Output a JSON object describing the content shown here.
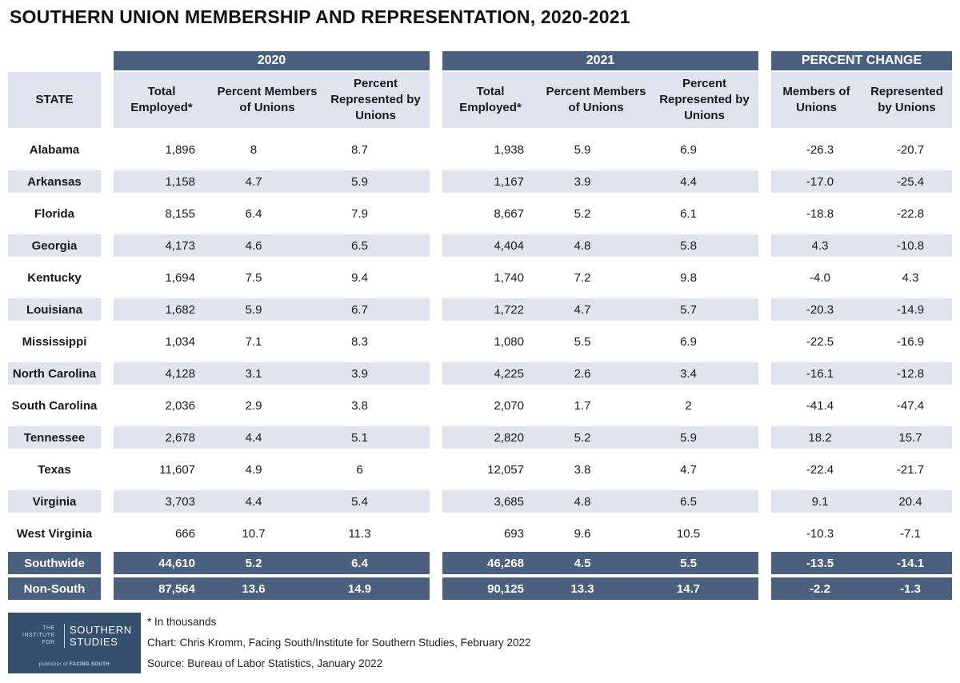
{
  "title": "SOUTHERN UNION MEMBERSHIP AND REPRESENTATION, 2020-2021",
  "header": {
    "state": "STATE",
    "group_2020": "2020",
    "group_2021": "2021",
    "group_change": "PERCENT CHANGE",
    "total_employed": "Total Employed*",
    "pct_members": "Percent Members of Unions",
    "pct_represented": "Percent Represented by Unions",
    "members": "Members of Unions",
    "represented": "Represented by Unions"
  },
  "rows": [
    {
      "state": "Alabama",
      "e20": "1,896",
      "m20": "8",
      "r20": "8.7",
      "e21": "1,938",
      "m21": "5.9",
      "r21": "6.9",
      "cm": "-26.3",
      "cr": "-20.7"
    },
    {
      "state": "Arkansas",
      "e20": "1,158",
      "m20": "4.7",
      "r20": "5.9",
      "e21": "1,167",
      "m21": "3.9",
      "r21": "4.4",
      "cm": "-17.0",
      "cr": "-25.4"
    },
    {
      "state": "Florida",
      "e20": "8,155",
      "m20": "6.4",
      "r20": "7.9",
      "e21": "8,667",
      "m21": "5.2",
      "r21": "6.1",
      "cm": "-18.8",
      "cr": "-22.8"
    },
    {
      "state": "Georgia",
      "e20": "4,173",
      "m20": "4.6",
      "r20": "6.5",
      "e21": "4,404",
      "m21": "4.8",
      "r21": "5.8",
      "cm": "4.3",
      "cr": "-10.8"
    },
    {
      "state": "Kentucky",
      "e20": "1,694",
      "m20": "7.5",
      "r20": "9.4",
      "e21": "1,740",
      "m21": "7.2",
      "r21": "9.8",
      "cm": "-4.0",
      "cr": "4.3"
    },
    {
      "state": "Louisiana",
      "e20": "1,682",
      "m20": "5.9",
      "r20": "6.7",
      "e21": "1,722",
      "m21": "4.7",
      "r21": "5.7",
      "cm": "-20.3",
      "cr": "-14.9"
    },
    {
      "state": "Mississippi",
      "e20": "1,034",
      "m20": "7.1",
      "r20": "8.3",
      "e21": "1,080",
      "m21": "5.5",
      "r21": "6.9",
      "cm": "-22.5",
      "cr": "-16.9"
    },
    {
      "state": "North Carolina",
      "e20": "4,128",
      "m20": "3.1",
      "r20": "3.9",
      "e21": "4,225",
      "m21": "2.6",
      "r21": "3.4",
      "cm": "-16.1",
      "cr": "-12.8"
    },
    {
      "state": "South Carolina",
      "e20": "2,036",
      "m20": "2.9",
      "r20": "3.8",
      "e21": "2,070",
      "m21": "1.7",
      "r21": "2",
      "cm": "-41.4",
      "cr": "-47.4"
    },
    {
      "state": "Tennessee",
      "e20": "2,678",
      "m20": "4.4",
      "r20": "5.1",
      "e21": "2,820",
      "m21": "5.2",
      "r21": "5.9",
      "cm": "18.2",
      "cr": "15.7"
    },
    {
      "state": "Texas",
      "e20": "11,607",
      "m20": "4.9",
      "r20": "6",
      "e21": "12,057",
      "m21": "3.8",
      "r21": "4.7",
      "cm": "-22.4",
      "cr": "-21.7"
    },
    {
      "state": "Virginia",
      "e20": "3,703",
      "m20": "4.4",
      "r20": "5.4",
      "e21": "3,685",
      "m21": "4.8",
      "r21": "6.5",
      "cm": "9.1",
      "cr": "20.4"
    },
    {
      "state": "West Virginia",
      "e20": "666",
      "m20": "10.7",
      "r20": "11.3",
      "e21": "693",
      "m21": "9.6",
      "r21": "10.5",
      "cm": "-10.3",
      "cr": "-7.1"
    },
    {
      "state": "Southwide",
      "e20": "44,610",
      "m20": "5.2",
      "r20": "6.4",
      "e21": "46,268",
      "m21": "4.5",
      "r21": "5.5",
      "cm": "-13.5",
      "cr": "-14.1"
    },
    {
      "state": "Non-South",
      "e20": "87,564",
      "m20": "13.6",
      "r20": "14.9",
      "e21": "90,125",
      "m21": "13.3",
      "r21": "14.7",
      "cm": "-2.2",
      "cr": "-1.3"
    }
  ],
  "footer": {
    "logo_small": "THE INSTITUTE FOR",
    "logo_big": "SOUTHERN STUDIES",
    "logo_pub": "publisher of FACING SOUTH",
    "note1": "* In thousands",
    "note2": "Chart: Chris Kromm, Facing South/Institute for Southern Studies, February 2022",
    "note3": "Source: Bureau of Labor Statistics, January 2022"
  }
}
